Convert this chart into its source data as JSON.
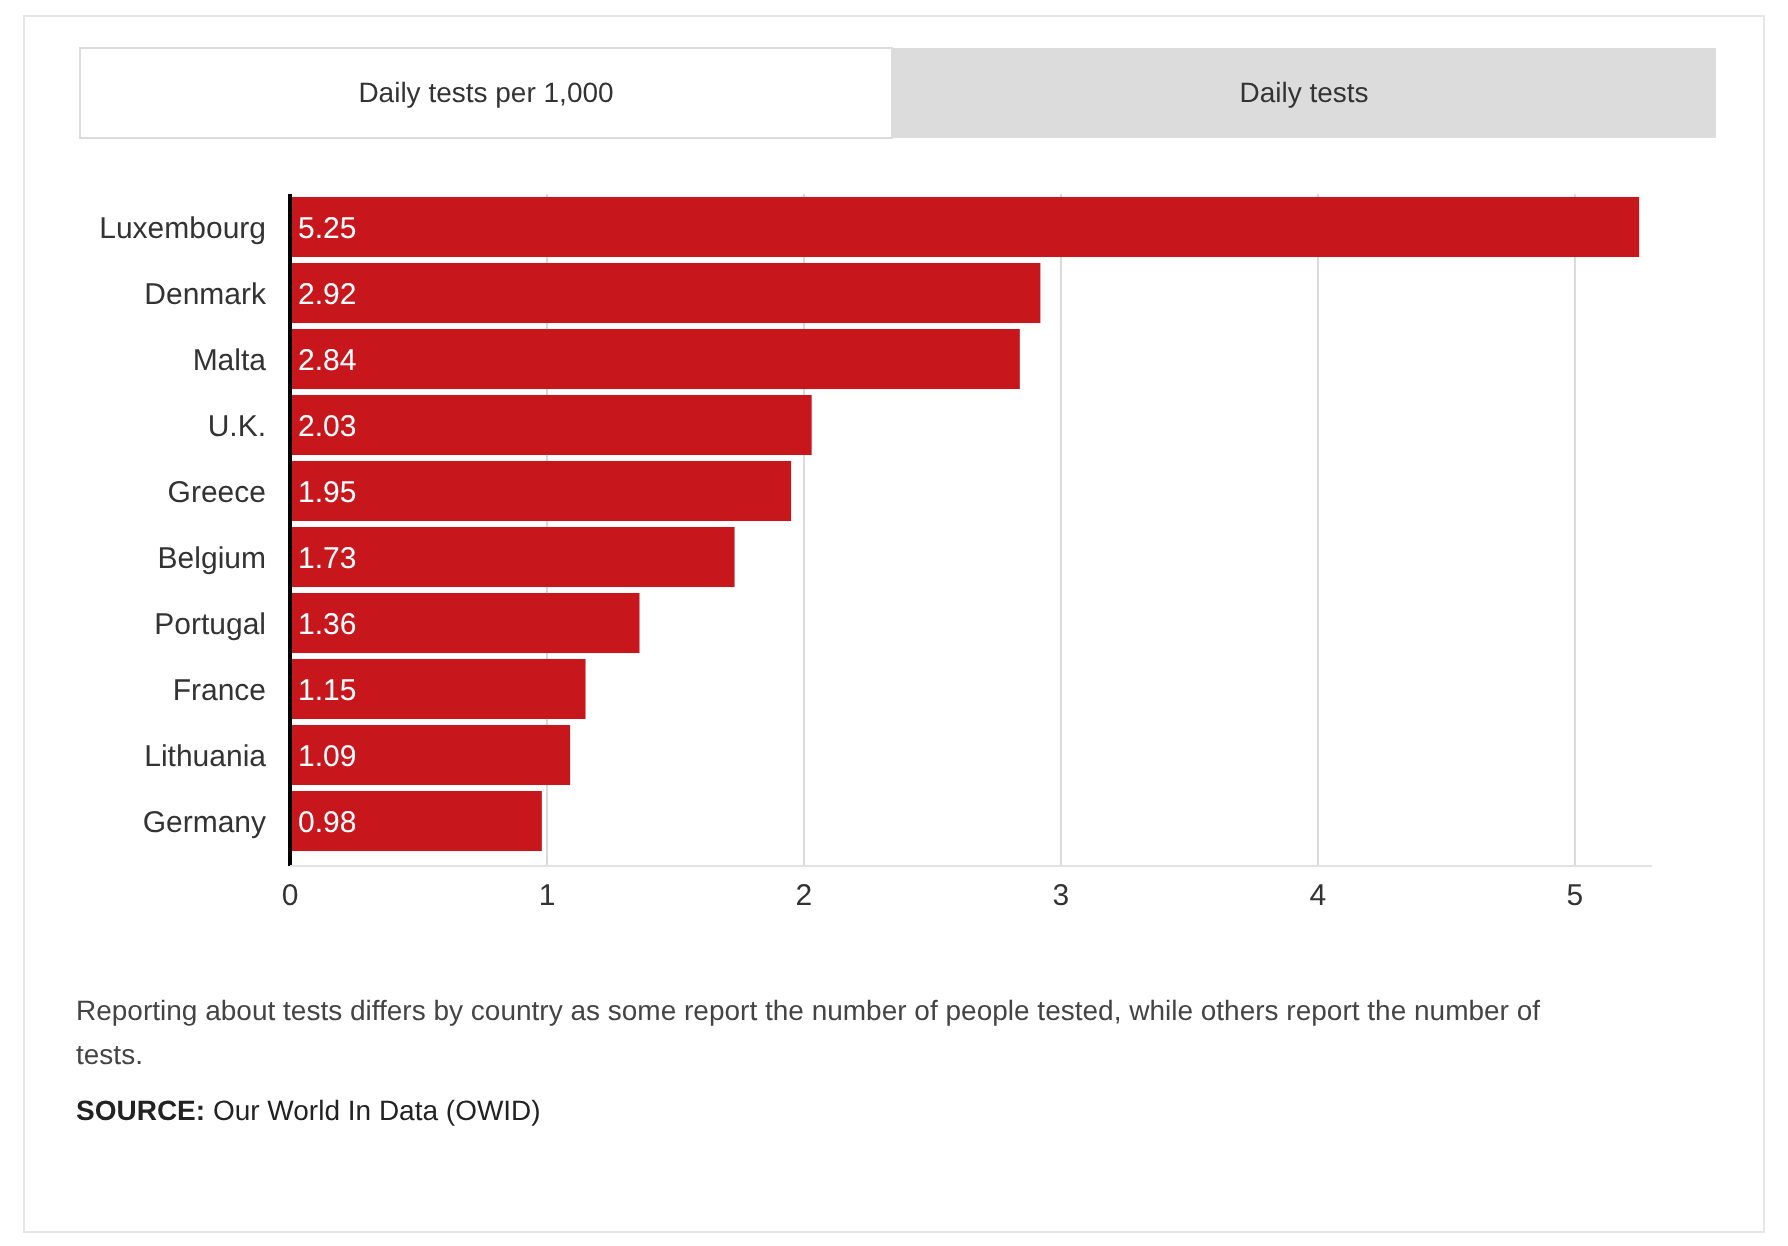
{
  "chart_data": {
    "type": "bar",
    "orientation": "horizontal",
    "categories": [
      "Luxembourg",
      "Denmark",
      "Malta",
      "U.K.",
      "Greece",
      "Belgium",
      "Portugal",
      "France",
      "Lithuania",
      "Germany"
    ],
    "values": [
      5.25,
      2.92,
      2.84,
      2.03,
      1.95,
      1.73,
      1.36,
      1.15,
      1.09,
      0.98
    ],
    "color": "#c8161d",
    "xlim": [
      0,
      5.3
    ],
    "xticks": [
      0,
      1,
      2,
      3,
      4,
      5
    ],
    "grid": "x",
    "data_labels": true,
    "annotations": [
      "Daily tests per 1,000",
      "Daily tests",
      "Reporting about tests differs by country as some report the number of people tested, while others report the number of tests.",
      "SOURCE: Our World In Data (OWID)"
    ]
  }
}
